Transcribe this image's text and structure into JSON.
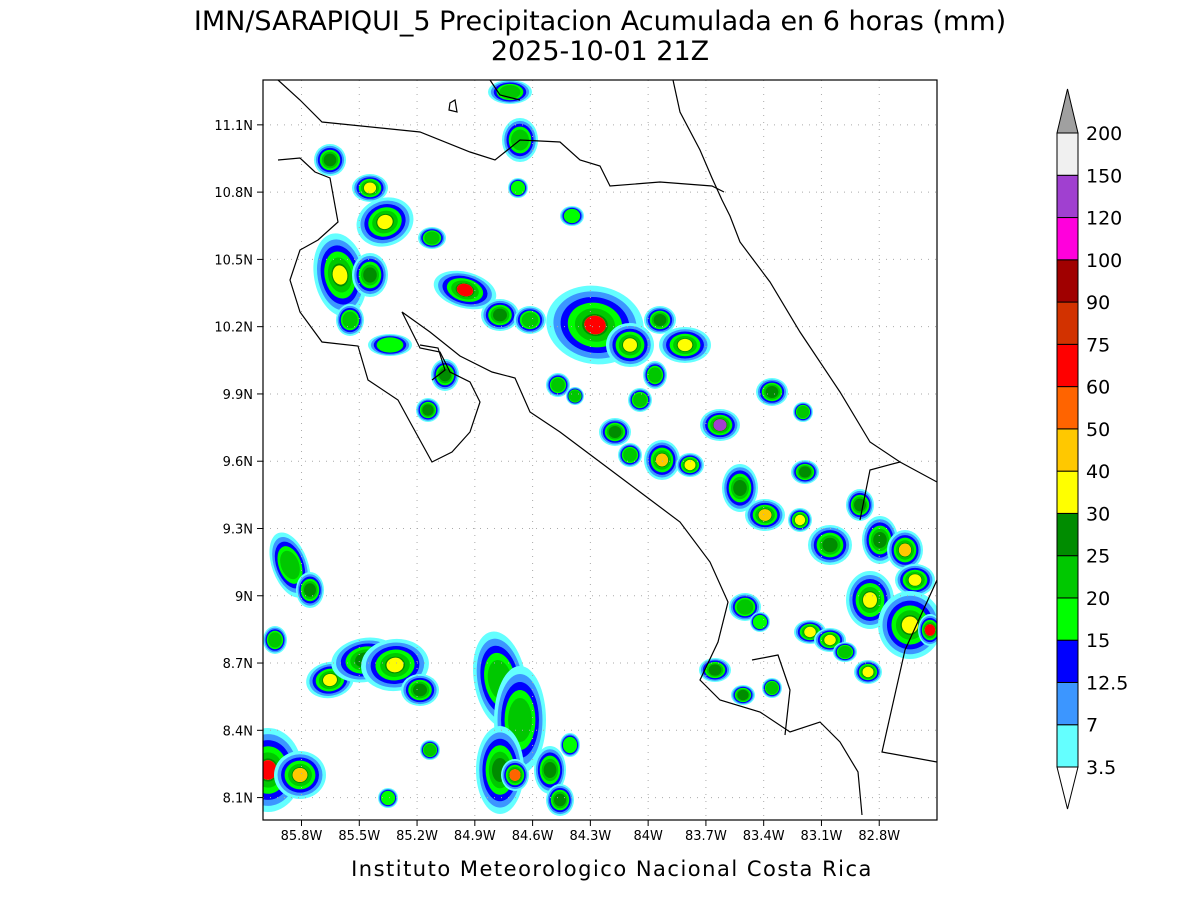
{
  "title": "IMN/SARAPIQUI_5 Precipitacion Acumulada en 6 horas (mm)",
  "subtitle": "2025-10-01 21Z",
  "footer": "Instituto Meteorologico Nacional Costa Rica",
  "map": {
    "xlim": [
      -86.0,
      -82.5
    ],
    "ylim": [
      8.0,
      11.3
    ],
    "grid": true,
    "xticks": [
      {
        "value": -85.8,
        "label": "85.8W"
      },
      {
        "value": -85.5,
        "label": "85.5W"
      },
      {
        "value": -85.2,
        "label": "85.2W"
      },
      {
        "value": -84.9,
        "label": "84.9W"
      },
      {
        "value": -84.6,
        "label": "84.6W"
      },
      {
        "value": -84.3,
        "label": "84.3W"
      },
      {
        "value": -84.0,
        "label": "84W"
      },
      {
        "value": -83.7,
        "label": "83.7W"
      },
      {
        "value": -83.4,
        "label": "83.4W"
      },
      {
        "value": -83.1,
        "label": "83.1W"
      },
      {
        "value": -82.8,
        "label": "82.8W"
      }
    ],
    "yticks": [
      {
        "value": 8.1,
        "label": "8.1N"
      },
      {
        "value": 8.4,
        "label": "8.4N"
      },
      {
        "value": 8.7,
        "label": "8.7N"
      },
      {
        "value": 9.0,
        "label": "9N"
      },
      {
        "value": 9.3,
        "label": "9.3N"
      },
      {
        "value": 9.6,
        "label": "9.6N"
      },
      {
        "value": 9.9,
        "label": "9.9N"
      },
      {
        "value": 10.2,
        "label": "10.2N"
      },
      {
        "value": 10.5,
        "label": "10.5N"
      },
      {
        "value": 10.8,
        "label": "10.8N"
      },
      {
        "value": 11.1,
        "label": "11.1N"
      }
    ]
  },
  "colorbar": {
    "levels": [
      3.5,
      7,
      12.5,
      15,
      20,
      25,
      30,
      40,
      50,
      60,
      75,
      90,
      100,
      120,
      150,
      200
    ],
    "colors": [
      "#64ffff",
      "#3c96ff",
      "#0000ff",
      "#00ff00",
      "#00c800",
      "#008c00",
      "#ffff00",
      "#ffc800",
      "#ff6400",
      "#ff0000",
      "#d23200",
      "#a00000",
      "#ff00dc",
      "#a040d0",
      "#f0f0f0"
    ],
    "over_color": "#a0a0a0",
    "under_color": "#ffffff"
  }
}
